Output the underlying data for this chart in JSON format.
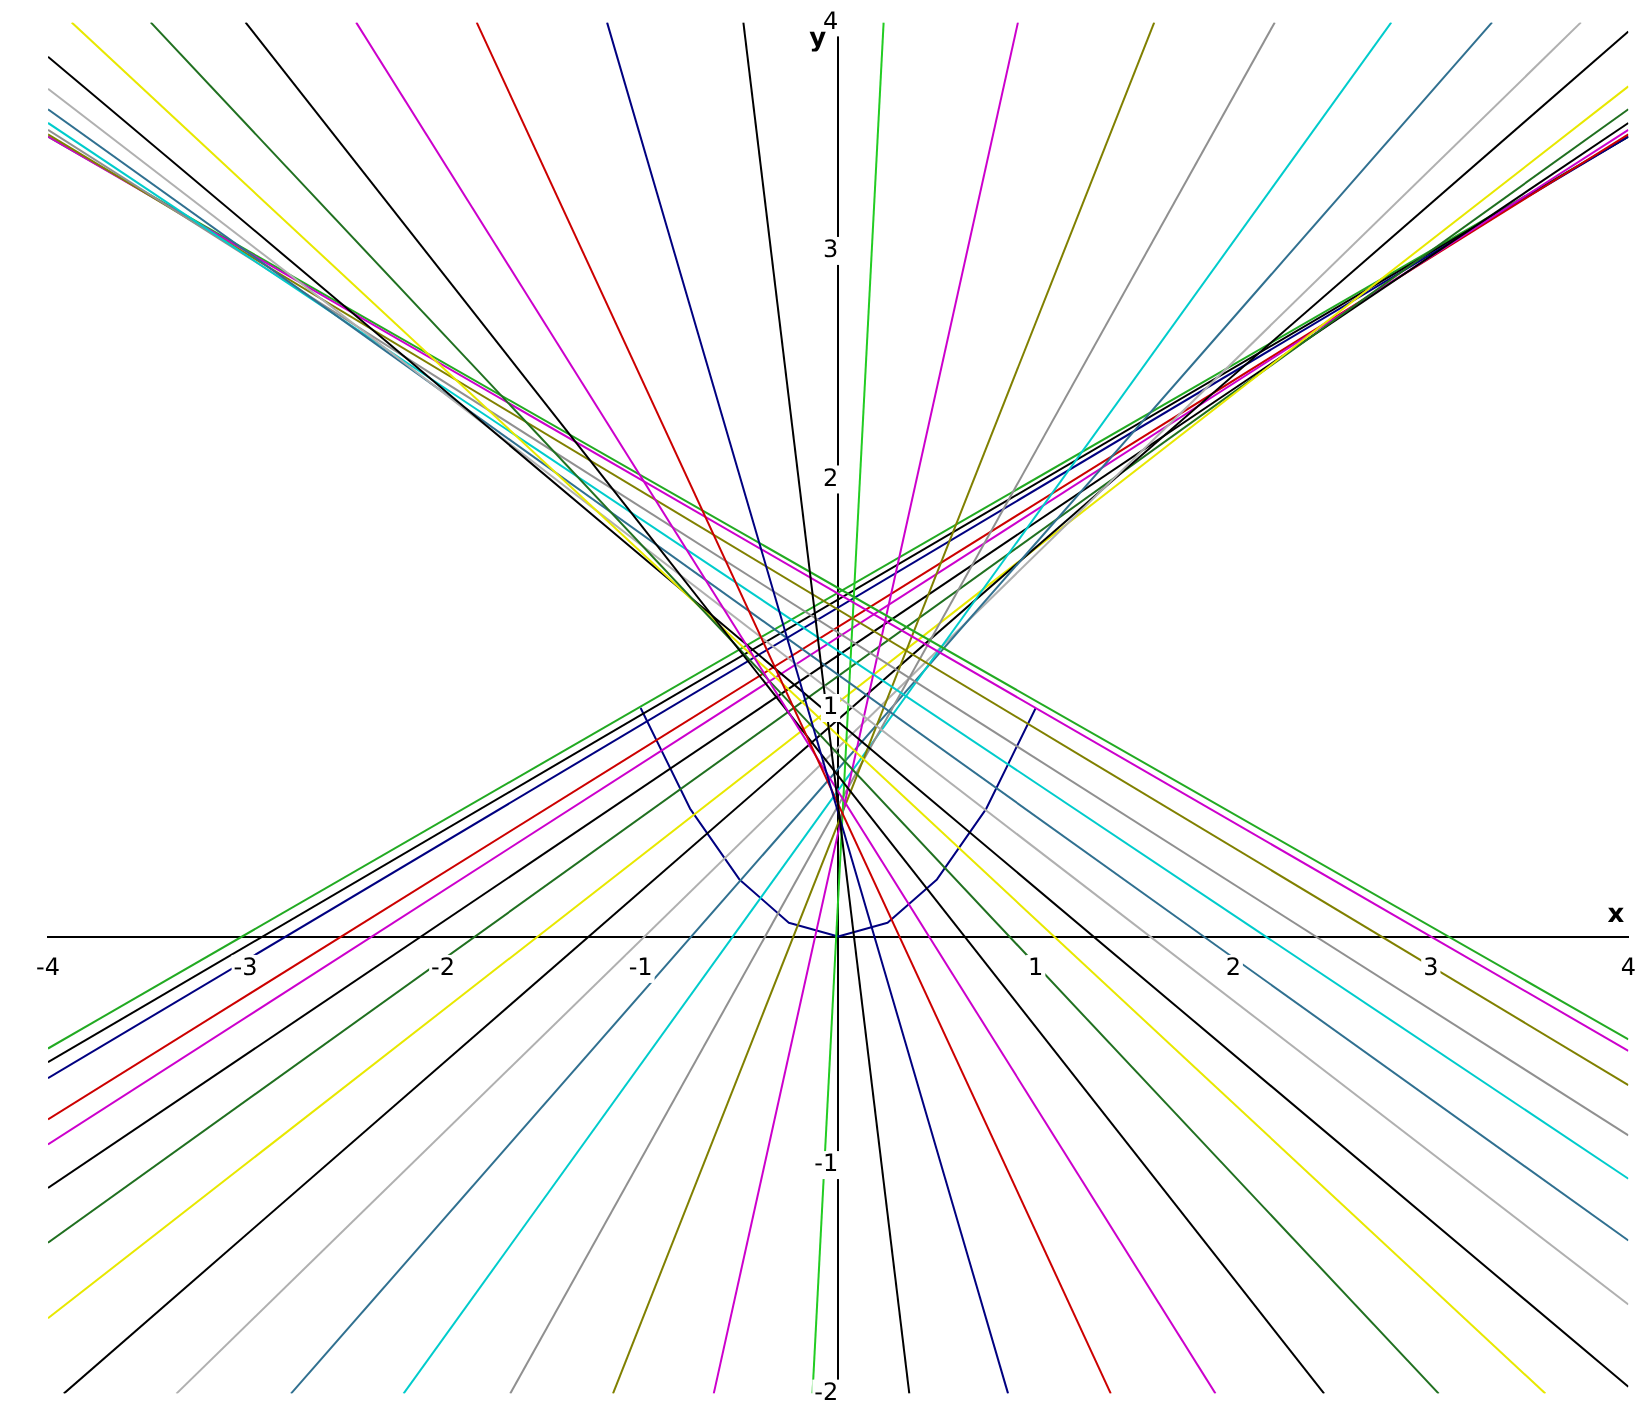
{
  "chart_data": {
    "type": "line",
    "xlabel": "x",
    "ylabel": "y",
    "marker": "none",
    "line_style": "solid",
    "xlim": [
      -4,
      4
    ],
    "ylim": [
      -2,
      4
    ],
    "xticks": [
      -4,
      -3,
      -2,
      -1,
      1,
      2,
      3,
      4
    ],
    "yticks": [
      -2,
      -1,
      1,
      2,
      3,
      4
    ],
    "series": [
      {
        "color": "#000000",
        "x": [
          -0.48,
          0.36
        ],
        "values": [
          4,
          -2
        ]
      },
      {
        "color": "#000080",
        "x": [
          -1.17,
          0.86
        ],
        "values": [
          4,
          -2
        ]
      },
      {
        "color": "#cc0000",
        "x": [
          -1.83,
          1.38
        ],
        "values": [
          4,
          -2
        ]
      },
      {
        "color": "#cc00cc",
        "x": [
          -2.44,
          1.91
        ],
        "values": [
          4,
          -2
        ]
      },
      {
        "color": "#000000",
        "x": [
          -3.0,
          2.46
        ],
        "values": [
          4,
          -2
        ]
      },
      {
        "color": "#207020",
        "x": [
          -3.48,
          3.04
        ],
        "values": [
          4,
          -2
        ]
      },
      {
        "color": "#e8e800",
        "x": [
          -3.88,
          3.58
        ],
        "values": [
          4,
          -2
        ]
      },
      {
        "color": "#000000",
        "x": [
          -4,
          4
        ],
        "values": [
          3.85,
          -1.97
        ]
      },
      {
        "color": "#b0b0b0",
        "x": [
          -4,
          4
        ],
        "values": [
          3.71,
          -1.61
        ]
      },
      {
        "color": "#307090",
        "x": [
          -4,
          4
        ],
        "values": [
          3.62,
          -1.33
        ]
      },
      {
        "color": "#00cccc",
        "x": [
          -4,
          4
        ],
        "values": [
          3.56,
          -1.06
        ]
      },
      {
        "color": "#909090",
        "x": [
          -4,
          4
        ],
        "values": [
          3.53,
          -0.87
        ]
      },
      {
        "color": "#808000",
        "x": [
          -4,
          4
        ],
        "values": [
          3.51,
          -0.65
        ]
      },
      {
        "color": "#cc00cc",
        "x": [
          -4,
          4
        ],
        "values": [
          3.5,
          -0.5
        ]
      },
      {
        "color": "#22aa22",
        "x": [
          -4,
          4
        ],
        "values": [
          3.5,
          -0.45
        ]
      },
      {
        "color": "#22cc22",
        "x": [
          -0.13,
          0.23
        ],
        "values": [
          -2,
          4
        ]
      },
      {
        "color": "#cc00cc",
        "x": [
          -0.63,
          0.91
        ],
        "values": [
          -2,
          4
        ]
      },
      {
        "color": "#808000",
        "x": [
          -1.14,
          1.6
        ],
        "values": [
          -2,
          4
        ]
      },
      {
        "color": "#909090",
        "x": [
          -1.66,
          2.21
        ],
        "values": [
          -2,
          4
        ]
      },
      {
        "color": "#00cccc",
        "x": [
          -2.2,
          2.8
        ],
        "values": [
          -2,
          4
        ]
      },
      {
        "color": "#307090",
        "x": [
          -2.77,
          3.31
        ],
        "values": [
          -2,
          4
        ]
      },
      {
        "color": "#b0b0b0",
        "x": [
          -3.35,
          3.76
        ],
        "values": [
          -2,
          4
        ]
      },
      {
        "color": "#000000",
        "x": [
          -3.92,
          4
        ],
        "values": [
          -2,
          3.96
        ]
      },
      {
        "color": "#e8e800",
        "x": [
          -4,
          4
        ],
        "values": [
          -1.67,
          3.72
        ]
      },
      {
        "color": "#207020",
        "x": [
          -4,
          4
        ],
        "values": [
          -1.34,
          3.62
        ]
      },
      {
        "color": "#000000",
        "x": [
          -4,
          4
        ],
        "values": [
          -1.1,
          3.56
        ]
      },
      {
        "color": "#cc00cc",
        "x": [
          -4,
          4
        ],
        "values": [
          -0.91,
          3.53
        ]
      },
      {
        "color": "#cc0000",
        "x": [
          -4,
          4
        ],
        "values": [
          -0.8,
          3.51
        ]
      },
      {
        "color": "#000080",
        "x": [
          -4,
          4
        ],
        "values": [
          -0.62,
          3.5
        ]
      },
      {
        "color": "#000000",
        "x": [
          -4,
          4
        ],
        "values": [
          -0.55,
          3.5
        ]
      },
      {
        "color": "#22aa22",
        "x": [
          -4,
          4
        ],
        "values": [
          -0.49,
          3.5
        ]
      },
      {
        "color": "#000080",
        "x": [
          -1,
          -0.75,
          -0.5,
          -0.25,
          0,
          0.25,
          0.5,
          0.75,
          1
        ],
        "values": [
          1,
          0.56,
          0.25,
          0.06,
          0,
          0.06,
          0.25,
          0.56,
          1
        ]
      }
    ]
  }
}
